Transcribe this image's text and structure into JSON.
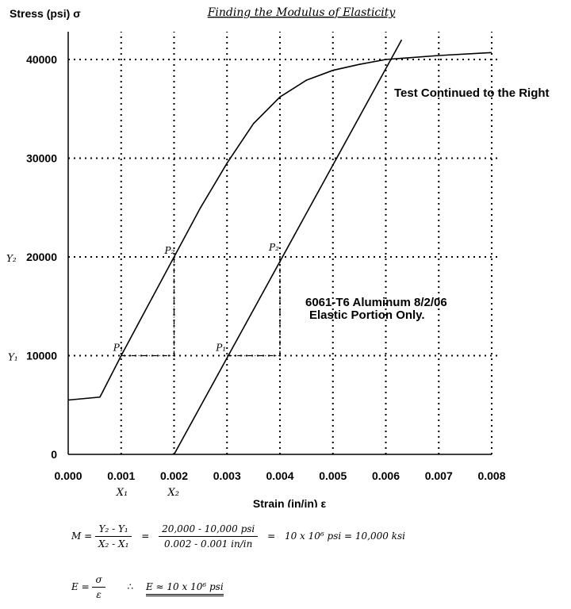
{
  "chart_data": {
    "type": "line",
    "title": "Finding the Modulus of Elasticity",
    "ylabel": "Stress (psi) σ",
    "xlabel": "Strain (in/in) ε",
    "xlim": [
      0,
      0.008
    ],
    "ylim": [
      0,
      40000
    ],
    "grid": true,
    "x_ticks": [
      "0.000",
      "0.001",
      "0.002",
      "0.003",
      "0.004",
      "0.005",
      "0.006",
      "0.007",
      "0.008"
    ],
    "y_ticks": [
      "0",
      "10000",
      "20000",
      "30000",
      "40000"
    ],
    "series": [
      {
        "x": [
          0,
          0.0006,
          0.001,
          0.0015,
          0.002,
          0.0025,
          0.003,
          0.0035,
          0.004,
          0.0045,
          0.005,
          0.0055,
          0.006,
          0.007,
          0.008
        ],
        "y": [
          5500,
          5800,
          10000,
          15000,
          20000,
          25000,
          29500,
          33500,
          36200,
          37900,
          38900,
          39500,
          40000,
          40400,
          40700
        ]
      },
      {
        "x": [
          0.002,
          0.0063
        ],
        "y": [
          0,
          42000
        ]
      }
    ],
    "annotations": {
      "test_continued": "Test Continued to the Right",
      "material_line1": "6061-T6 Aluminum    8/2/06",
      "material_line2": "Elastic Portion Only.",
      "p1": "P₁",
      "p2": "P₂",
      "y1_label": "Y₁",
      "y2_label": "Y₂",
      "x1_label": "X₁",
      "x2_label": "X₂",
      "ref_points": {
        "left_p1": [
          0.001,
          10000
        ],
        "left_p2": [
          0.002,
          20000
        ],
        "right_p1": [
          0.003,
          10000
        ],
        "right_p2": [
          0.004,
          20000
        ]
      }
    }
  },
  "formula": {
    "m_prefix": "M =",
    "f1_num": "Y₂ - Y₁",
    "f1_den": "X₂ - X₁",
    "eq1": "=",
    "f2_num": "20,000 - 10,000 psi",
    "f2_den": "0.002 - 0.001 in/in",
    "eq2": "=",
    "result": "10 x 10⁶ psi  =  10,000 ksi",
    "e_prefix": "E =",
    "e_num": "σ",
    "e_den": "ε",
    "therefore": "∴",
    "e_final": "E ≈ 10 x 10⁶ psi"
  }
}
